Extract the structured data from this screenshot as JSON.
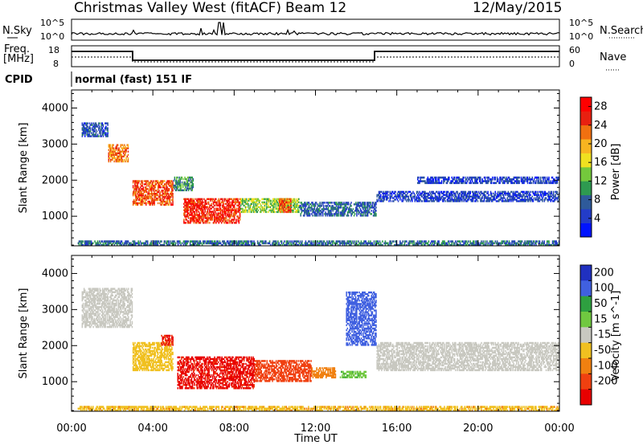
{
  "header": {
    "site": "Christmas Valley West (fitACF)",
    "beam": "Beam 12",
    "date": "12/May/2015"
  },
  "nsky_panel": {
    "left_label": "N.Sky",
    "left_ticks": [
      "10^5",
      "10^0"
    ],
    "right_label": "N.Search",
    "right_ticks": [
      "10^5",
      "10^0"
    ]
  },
  "freq_panel": {
    "left_label_1": "Freq.",
    "left_label_2": "[MHz]",
    "left_ticks": [
      "18",
      "8"
    ],
    "right_label": "Nave",
    "right_ticks": [
      "60",
      "0"
    ]
  },
  "cpid": {
    "label": "CPID",
    "value": "normal (fast) 151 IF"
  },
  "chart_data": [
    {
      "type": "heatmap",
      "name": "power",
      "xlabel": "Time UT",
      "ylabel": "Slant Range [km]",
      "xlim": [
        0,
        24
      ],
      "ylim": [
        180,
        4500
      ],
      "x_ticks": [
        "00:00",
        "04:00",
        "08:00",
        "12:00",
        "16:00",
        "20:00",
        "00:00"
      ],
      "y_ticks": [
        "1000",
        "2000",
        "3000",
        "4000"
      ],
      "colorbar": {
        "label": "Power [dB]",
        "ticks": [
          "4",
          "8",
          "12",
          "16",
          "20",
          "24",
          "28"
        ],
        "range": [
          0,
          30
        ],
        "colors": [
          "#0014ff",
          "#233cc8",
          "#2e5a9a",
          "#2e9a50",
          "#74c83c",
          "#f0e020",
          "#f8b420",
          "#f07010",
          "#e82010",
          "#ff0000"
        ]
      },
      "echo_regions": [
        {
          "t0": 0.5,
          "t1": 1.8,
          "r0": 3200,
          "r1": 3600,
          "power": 6
        },
        {
          "t0": 1.8,
          "t1": 2.8,
          "r0": 2500,
          "r1": 3000,
          "power": 22
        },
        {
          "t0": 3.0,
          "t1": 5.0,
          "r0": 1300,
          "r1": 2000,
          "power": 24
        },
        {
          "t0": 5.0,
          "t1": 6.0,
          "r0": 1700,
          "r1": 2100,
          "power": 10
        },
        {
          "t0": 5.5,
          "t1": 8.3,
          "r0": 800,
          "r1": 1500,
          "power": 26
        },
        {
          "t0": 8.3,
          "t1": 11.2,
          "r0": 1100,
          "r1": 1500,
          "power": 14
        },
        {
          "t0": 10.2,
          "t1": 10.8,
          "r0": 1100,
          "r1": 1500,
          "power": 24
        },
        {
          "t0": 11.2,
          "t1": 15.0,
          "r0": 1000,
          "r1": 1400,
          "power": 7
        },
        {
          "t0": 15.0,
          "t1": 24.0,
          "r0": 1400,
          "r1": 1700,
          "power": 5
        },
        {
          "t0": 17.0,
          "t1": 24.0,
          "r0": 1900,
          "r1": 2100,
          "power": 5
        },
        {
          "t0": 0.3,
          "t1": 24.0,
          "r0": 180,
          "r1": 330,
          "power": 8
        }
      ]
    },
    {
      "type": "heatmap",
      "name": "velocity",
      "xlabel": "Time UT",
      "ylabel": "Slant Range [km]",
      "xlim": [
        0,
        24
      ],
      "ylim": [
        180,
        4500
      ],
      "x_ticks": [
        "00:00",
        "04:00",
        "08:00",
        "12:00",
        "16:00",
        "20:00",
        "00:00"
      ],
      "y_ticks": [
        "1000",
        "2000",
        "3000",
        "4000"
      ],
      "colorbar": {
        "label": "Velocity [m s^-1]",
        "ticks": [
          "200",
          "100",
          "50",
          "15",
          "-15",
          "-50",
          "-100",
          "-200"
        ],
        "colors": [
          "#2030c0",
          "#4060e0",
          "#2ea040",
          "#70c840",
          "#c8c8c0",
          "#f0c020",
          "#f08010",
          "#f04010",
          "#e80000"
        ]
      },
      "echo_regions": [
        {
          "t0": 0.5,
          "t1": 3.0,
          "r0": 2500,
          "r1": 3600,
          "velocity": 0
        },
        {
          "t0": 3.0,
          "t1": 5.0,
          "r0": 1300,
          "r1": 2100,
          "velocity": -30
        },
        {
          "t0": 4.4,
          "t1": 5.0,
          "r0": 2000,
          "r1": 2300,
          "velocity": -200
        },
        {
          "t0": 5.2,
          "t1": 9.0,
          "r0": 800,
          "r1": 1700,
          "velocity": -210
        },
        {
          "t0": 9.0,
          "t1": 11.8,
          "r0": 1000,
          "r1": 1600,
          "velocity": -180
        },
        {
          "t0": 11.8,
          "t1": 13.0,
          "r0": 1100,
          "r1": 1400,
          "velocity": -70
        },
        {
          "t0": 13.2,
          "t1": 14.5,
          "r0": 1100,
          "r1": 1300,
          "velocity": 40
        },
        {
          "t0": 13.5,
          "t1": 15.0,
          "r0": 2000,
          "r1": 3500,
          "velocity": 150
        },
        {
          "t0": 15.0,
          "t1": 24.0,
          "r0": 1300,
          "r1": 2100,
          "velocity": 0
        },
        {
          "t0": 0.3,
          "t1": 24.0,
          "r0": 180,
          "r1": 330,
          "velocity": -40
        }
      ]
    }
  ]
}
